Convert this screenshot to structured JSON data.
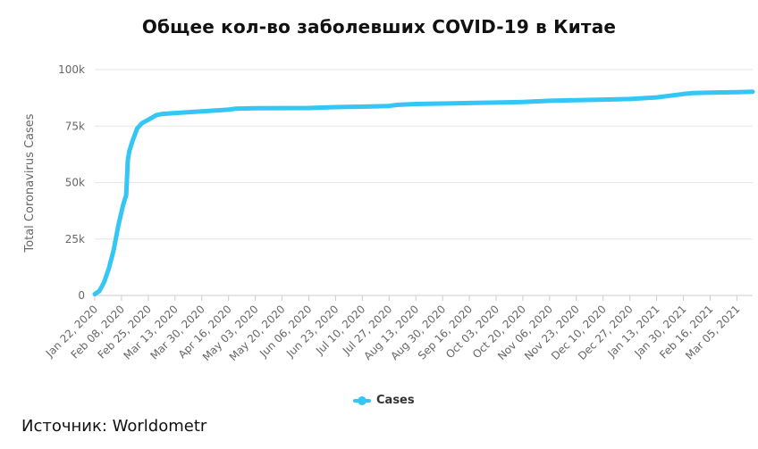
{
  "chart_data": {
    "type": "line",
    "title": "Общее кол-во заболевших COVID-19 в Китае",
    "xlabel": "",
    "ylabel": "Total Coronavirus Cases",
    "ylim": [
      0,
      100000
    ],
    "y_ticks": [
      "0",
      "25k",
      "50k",
      "75k",
      "100k"
    ],
    "y_tick_values": [
      0,
      25000,
      50000,
      75000,
      100000
    ],
    "x_ticks": [
      "Jan 22, 2020",
      "Feb 08, 2020",
      "Feb 25, 2020",
      "Mar 13, 2020",
      "Mar 30, 2020",
      "Apr 16, 2020",
      "May 03, 2020",
      "May 20, 2020",
      "Jun 06, 2020",
      "Jun 23, 2020",
      "Jul 10, 2020",
      "Jul 27, 2020",
      "Aug 13, 2020",
      "Aug 30, 2020",
      "Sep 16, 2020",
      "Oct 03, 2020",
      "Oct 20, 2020",
      "Nov 06, 2020",
      "Nov 23, 2020",
      "Dec 10, 2020",
      "Dec 27, 2020",
      "Jan 13, 2021",
      "Jan 30, 2021",
      "Feb 16, 2021",
      "Mar 05, 2021"
    ],
    "grid": true,
    "legend_position": "bottom",
    "series": [
      {
        "name": "Cases",
        "color": "#34c6f4",
        "points": [
          [
            "Jan 22, 2020",
            600
          ],
          [
            "Jan 25, 2020",
            2000
          ],
          [
            "Jan 28, 2020",
            6000
          ],
          [
            "Jan 31, 2020",
            12000
          ],
          [
            "Feb 03, 2020",
            20000
          ],
          [
            "Feb 06, 2020",
            31000
          ],
          [
            "Feb 09, 2020",
            40000
          ],
          [
            "Feb 11, 2020",
            44500
          ],
          [
            "Feb 12, 2020",
            60000
          ],
          [
            "Feb 13, 2020",
            64000
          ],
          [
            "Feb 15, 2020",
            68500
          ],
          [
            "Feb 18, 2020",
            74000
          ],
          [
            "Feb 21, 2020",
            76300
          ],
          [
            "Feb 25, 2020",
            77800
          ],
          [
            "Mar 01, 2020",
            79800
          ],
          [
            "Mar 05, 2020",
            80400
          ],
          [
            "Mar 13, 2020",
            80800
          ],
          [
            "Mar 30, 2020",
            81500
          ],
          [
            "Apr 16, 2020",
            82300
          ],
          [
            "Apr 20, 2020",
            82700
          ],
          [
            "May 03, 2020",
            82900
          ],
          [
            "Jun 06, 2020",
            83000
          ],
          [
            "Jun 23, 2020",
            83400
          ],
          [
            "Jul 10, 2020",
            83600
          ],
          [
            "Jul 27, 2020",
            83900
          ],
          [
            "Aug 01, 2020",
            84400
          ],
          [
            "Aug 13, 2020",
            84800
          ],
          [
            "Aug 30, 2020",
            85000
          ],
          [
            "Sep 16, 2020",
            85200
          ],
          [
            "Oct 03, 2020",
            85400
          ],
          [
            "Oct 20, 2020",
            85700
          ],
          [
            "Nov 06, 2020",
            86200
          ],
          [
            "Nov 23, 2020",
            86500
          ],
          [
            "Dec 10, 2020",
            86700
          ],
          [
            "Dec 27, 2020",
            87000
          ],
          [
            "Jan 13, 2021",
            87700
          ],
          [
            "Jan 30, 2021",
            89200
          ],
          [
            "Feb 05, 2021",
            89600
          ],
          [
            "Feb 16, 2021",
            89800
          ],
          [
            "Mar 05, 2021",
            90000
          ],
          [
            "Mar 15, 2021",
            90200
          ]
        ]
      }
    ]
  },
  "legend": {
    "label": "Cases"
  },
  "source": {
    "text": "Источник: Worldometr"
  }
}
